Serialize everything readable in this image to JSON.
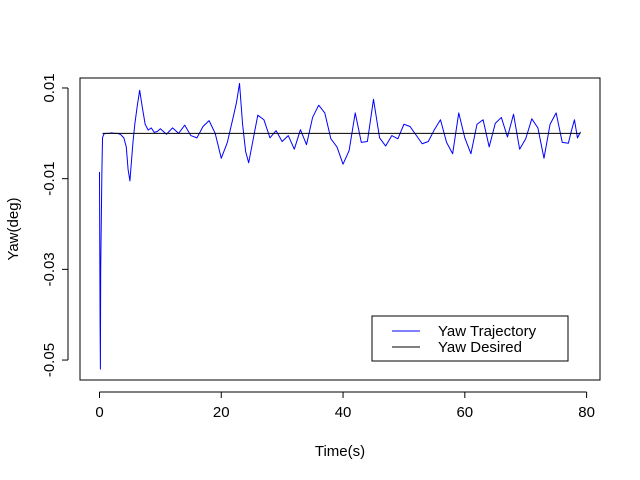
{
  "chart_data": {
    "type": "line",
    "title": "",
    "xlabel": "Time(s)",
    "ylabel": "Yaw(deg)",
    "xlim": [
      -3.2,
      82.2
    ],
    "ylim": [
      -0.0544,
      0.0122
    ],
    "x_ticks": [
      0,
      20,
      40,
      60,
      80
    ],
    "x_tick_labels": [
      "0",
      "20",
      "40",
      "60",
      "80"
    ],
    "y_ticks": [
      -0.05,
      -0.03,
      -0.01,
      0.01
    ],
    "y_tick_labels": [
      "-0.05",
      "-0.03",
      "-0.01",
      "0.01"
    ],
    "grid": false,
    "legend": {
      "position": "bottom-right",
      "entries": [
        {
          "label": "Yaw Trajectory",
          "color": "#0000ff"
        },
        {
          "label": "Yaw Desired",
          "color": "#000000"
        }
      ]
    },
    "series": [
      {
        "name": "Yaw Trajectory",
        "color": "#0000ff",
        "x": [
          0.0,
          0.1,
          0.15,
          0.2,
          0.3,
          0.4,
          0.5,
          0.7,
          1.0,
          1.5,
          2.0,
          2.5,
          3.0,
          3.5,
          4.0,
          4.4,
          4.7,
          5.0,
          5.2,
          5.5,
          5.8,
          6.2,
          6.6,
          7.0,
          7.5,
          8.0,
          8.5,
          9.0,
          9.5,
          10.0,
          11.0,
          12.0,
          13.0,
          14.0,
          15.0,
          16.0,
          17.0,
          18.0,
          19.0,
          20.0,
          21.0,
          22.0,
          22.5,
          23.0,
          23.5,
          24.0,
          24.5,
          25.0,
          25.5,
          26.0,
          27.0,
          28.0,
          29.0,
          30.0,
          31.0,
          32.0,
          33.0,
          34.0,
          35.0,
          36.0,
          37.0,
          38.0,
          39.0,
          40.0,
          41.0,
          42.0,
          43.0,
          44.0,
          45.0,
          46.0,
          47.0,
          48.0,
          49.0,
          50.0,
          51.0,
          52.0,
          53.0,
          54.0,
          55.0,
          56.0,
          57.0,
          58.0,
          59.0,
          60.0,
          61.0,
          62.0,
          63.0,
          64.0,
          65.0,
          66.0,
          67.0,
          68.0,
          69.0,
          70.0,
          71.0,
          72.0,
          73.0,
          74.0,
          75.0,
          76.0,
          77.0,
          77.5,
          78.0,
          78.5,
          79.0
        ],
        "y": [
          -0.0085,
          -0.042,
          -0.052,
          -0.03,
          -0.019,
          -0.008,
          -0.001,
          -0.0002,
          0.0,
          0.0,
          0.0001,
          0.0,
          0.0,
          -0.0003,
          -0.001,
          -0.003,
          -0.008,
          -0.0105,
          -0.007,
          -0.002,
          0.002,
          0.006,
          0.0095,
          0.006,
          0.002,
          0.0007,
          0.0012,
          0.0002,
          0.0004,
          0.001,
          -0.0002,
          0.0012,
          0.0,
          0.0018,
          -0.0005,
          -0.001,
          0.0015,
          0.0028,
          0.0,
          -0.0055,
          -0.002,
          0.0038,
          0.0068,
          0.011,
          0.002,
          -0.004,
          -0.0065,
          -0.003,
          0.0005,
          0.004,
          0.003,
          -0.001,
          0.0006,
          -0.0018,
          -0.0005,
          -0.0035,
          0.0008,
          -0.0025,
          0.0035,
          0.0062,
          0.0045,
          -0.0012,
          -0.003,
          -0.0068,
          -0.0038,
          0.0045,
          -0.002,
          -0.0018,
          0.0075,
          -0.001,
          -0.0028,
          -0.0005,
          -0.0012,
          0.002,
          0.0015,
          -0.0004,
          -0.0023,
          -0.0018,
          0.0008,
          0.003,
          -0.002,
          -0.0045,
          0.0045,
          -0.001,
          -0.0045,
          0.002,
          0.003,
          -0.003,
          0.0022,
          0.0035,
          -0.0008,
          0.0042,
          -0.0035,
          -0.0012,
          0.0032,
          0.0012,
          -0.0055,
          0.002,
          0.0045,
          -0.002,
          -0.0022,
          0.0005,
          0.003,
          -0.001,
          0.0003
        ]
      },
      {
        "name": "Yaw Desired",
        "color": "#000000",
        "x": [
          0.5,
          79.0
        ],
        "y": [
          0.0,
          0.0
        ]
      }
    ]
  }
}
